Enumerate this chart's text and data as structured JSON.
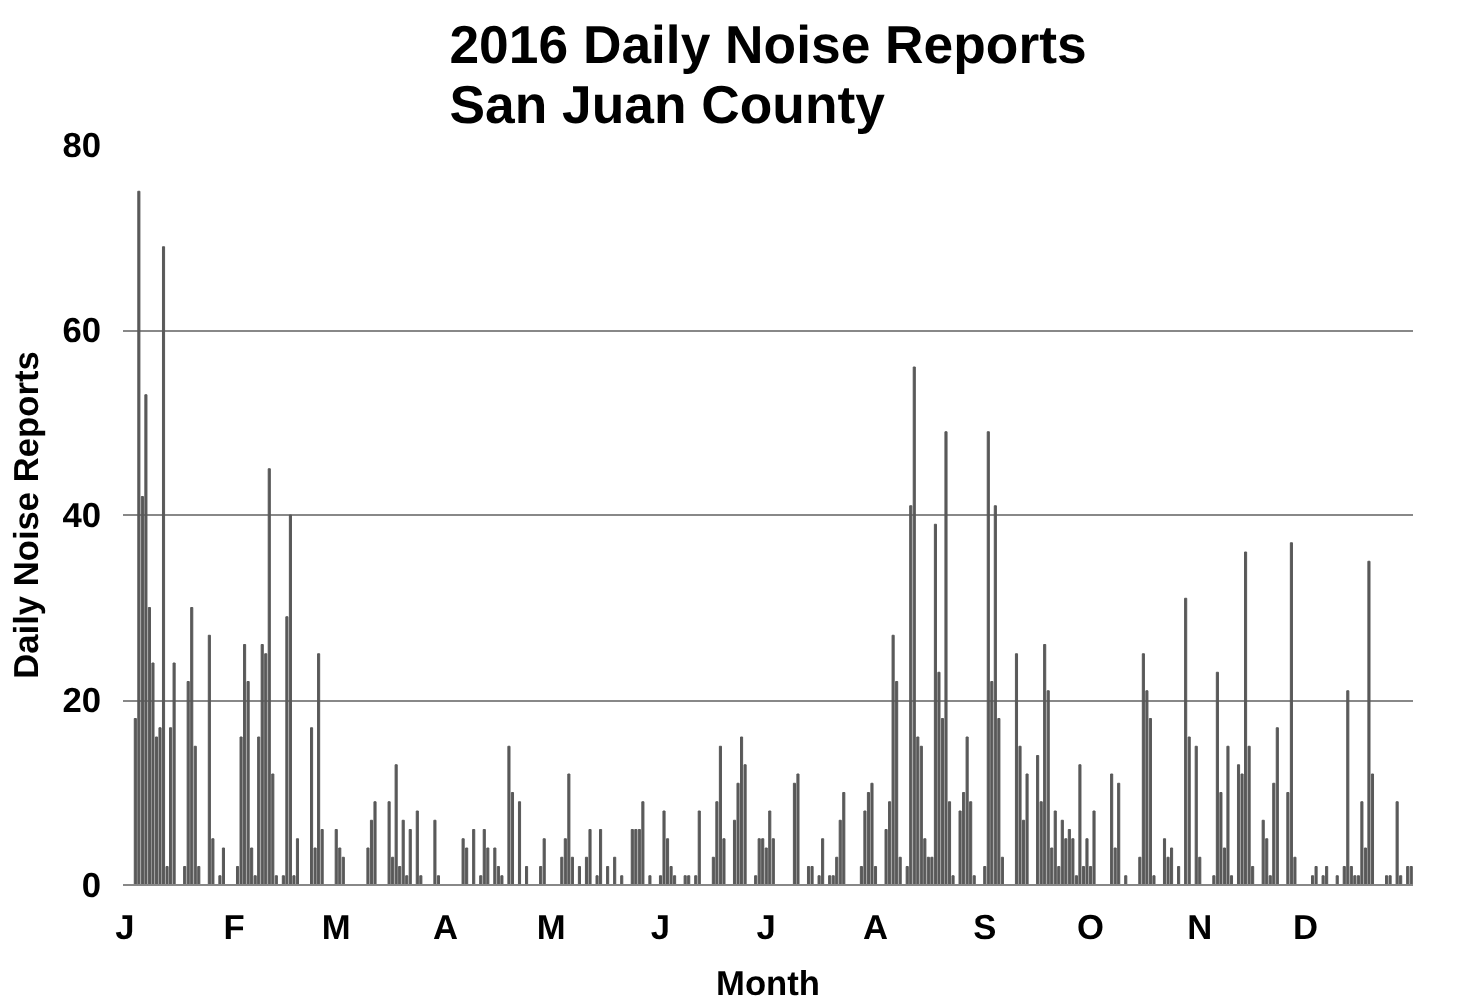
{
  "chart_data": {
    "type": "bar",
    "title": "2016 Daily Noise Reports\nSan Juan County",
    "xlabel": "Month",
    "ylabel": "Daily Noise Reports",
    "categories": [
      "J",
      null,
      null,
      null,
      null,
      null,
      null,
      null,
      null,
      null,
      null,
      null,
      null,
      null,
      null,
      null,
      null,
      null,
      null,
      null,
      null,
      null,
      null,
      null,
      null,
      null,
      null,
      null,
      null,
      null,
      null,
      "F",
      null,
      null,
      null,
      null,
      null,
      null,
      null,
      null,
      null,
      null,
      null,
      null,
      null,
      null,
      null,
      null,
      null,
      null,
      null,
      null,
      null,
      null,
      null,
      null,
      null,
      null,
      null,
      null,
      "M",
      null,
      null,
      null,
      null,
      null,
      null,
      null,
      null,
      null,
      null,
      null,
      null,
      null,
      null,
      null,
      null,
      null,
      null,
      null,
      null,
      null,
      null,
      null,
      null,
      null,
      null,
      null,
      null,
      null,
      null,
      "A",
      null,
      null,
      null,
      null,
      null,
      null,
      null,
      null,
      null,
      null,
      null,
      null,
      null,
      null,
      null,
      null,
      null,
      null,
      null,
      null,
      null,
      null,
      null,
      null,
      null,
      null,
      null,
      null,
      null,
      "M",
      null,
      null,
      null,
      null,
      null,
      null,
      null,
      null,
      null,
      null,
      null,
      null,
      null,
      null,
      null,
      null,
      null,
      null,
      null,
      null,
      null,
      null,
      null,
      null,
      null,
      null,
      null,
      null,
      null,
      null,
      "J",
      null,
      null,
      null,
      null,
      null,
      null,
      null,
      null,
      null,
      null,
      null,
      null,
      null,
      null,
      null,
      null,
      null,
      null,
      null,
      null,
      null,
      null,
      null,
      null,
      null,
      null,
      null,
      null,
      null,
      "J",
      null,
      null,
      null,
      null,
      null,
      null,
      null,
      null,
      null,
      null,
      null,
      null,
      null,
      null,
      null,
      null,
      null,
      null,
      null,
      null,
      null,
      null,
      null,
      null,
      null,
      null,
      null,
      null,
      null,
      null,
      "A",
      null,
      null,
      null,
      null,
      null,
      null,
      null,
      null,
      null,
      null,
      null,
      null,
      null,
      null,
      null,
      null,
      null,
      null,
      null,
      null,
      null,
      null,
      null,
      null,
      null,
      null,
      null,
      null,
      null,
      null,
      "S",
      null,
      null,
      null,
      null,
      null,
      null,
      null,
      null,
      null,
      null,
      null,
      null,
      null,
      null,
      null,
      null,
      null,
      null,
      null,
      null,
      null,
      null,
      null,
      null,
      null,
      null,
      null,
      null,
      null,
      "O",
      null,
      null,
      null,
      null,
      null,
      null,
      null,
      null,
      null,
      null,
      null,
      null,
      null,
      null,
      null,
      null,
      null,
      null,
      null,
      null,
      null,
      null,
      null,
      null,
      null,
      null,
      null,
      null,
      null,
      null,
      "N",
      null,
      null,
      null,
      null,
      null,
      null,
      null,
      null,
      null,
      null,
      null,
      null,
      null,
      null,
      null,
      null,
      null,
      null,
      null,
      null,
      null,
      null,
      null,
      null,
      null,
      null,
      null,
      null,
      null,
      "D",
      null,
      null,
      null,
      null,
      null,
      null,
      null,
      null,
      null,
      null,
      null,
      null,
      null,
      null,
      null,
      null,
      null,
      null,
      null,
      null,
      null,
      null,
      null,
      null,
      null,
      null,
      null,
      null,
      null,
      null
    ],
    "values": [
      0,
      0,
      0,
      18,
      75,
      42,
      53,
      30,
      24,
      16,
      17,
      69,
      2,
      17,
      24,
      0,
      0,
      2,
      22,
      30,
      15,
      2,
      0,
      0,
      27,
      5,
      0,
      1,
      4,
      0,
      0,
      0,
      2,
      16,
      26,
      22,
      4,
      1,
      16,
      26,
      25,
      45,
      12,
      1,
      0,
      1,
      29,
      40,
      1,
      5,
      0,
      0,
      0,
      17,
      4,
      25,
      6,
      0,
      0,
      0,
      6,
      4,
      3,
      0,
      0,
      0,
      0,
      0,
      0,
      4,
      7,
      9,
      0,
      0,
      0,
      9,
      3,
      13,
      2,
      7,
      1,
      6,
      0,
      8,
      1,
      0,
      0,
      0,
      7,
      1,
      0,
      0,
      0,
      0,
      0,
      0,
      5,
      4,
      0,
      6,
      0,
      1,
      6,
      4,
      0,
      4,
      2,
      1,
      0,
      15,
      10,
      0,
      9,
      0,
      2,
      0,
      0,
      0,
      2,
      5,
      0,
      0,
      0,
      0,
      3,
      5,
      12,
      3,
      0,
      2,
      0,
      3,
      6,
      0,
      1,
      6,
      0,
      2,
      0,
      3,
      0,
      1,
      0,
      0,
      6,
      6,
      6,
      9,
      0,
      1,
      0,
      0,
      1,
      8,
      5,
      2,
      1,
      0,
      0,
      1,
      1,
      0,
      1,
      8,
      0,
      0,
      0,
      3,
      9,
      15,
      5,
      0,
      0,
      7,
      11,
      16,
      13,
      0,
      0,
      1,
      5,
      5,
      4,
      8,
      5,
      0,
      0,
      0,
      0,
      0,
      11,
      12,
      0,
      0,
      2,
      2,
      0,
      1,
      5,
      0,
      1,
      1,
      3,
      7,
      10,
      0,
      0,
      0,
      0,
      2,
      8,
      10,
      11,
      2,
      0,
      0,
      6,
      9,
      27,
      22,
      3,
      0,
      2,
      41,
      56,
      16,
      15,
      5,
      3,
      3,
      39,
      23,
      18,
      49,
      9,
      1,
      0,
      8,
      10,
      16,
      9,
      1,
      0,
      0,
      2,
      49,
      22,
      41,
      18,
      3,
      0,
      0,
      0,
      25,
      15,
      7,
      12,
      0,
      0,
      14,
      9,
      26,
      21,
      4,
      8,
      2,
      7,
      5,
      6,
      5,
      1,
      13,
      2,
      5,
      2,
      8,
      0,
      0,
      0,
      0,
      12,
      4,
      11,
      0,
      1,
      0,
      0,
      0,
      3,
      25,
      21,
      18,
      1,
      0,
      0,
      5,
      3,
      4,
      0,
      2,
      0,
      31,
      16,
      0,
      15,
      3,
      0,
      0,
      0,
      1,
      23,
      10,
      4,
      15,
      1,
      0,
      13,
      12,
      36,
      15,
      2,
      0,
      0,
      7,
      5,
      1,
      11,
      17,
      0,
      0,
      10,
      37,
      3,
      0,
      0,
      0,
      0,
      1,
      2,
      0,
      1,
      2,
      0,
      0,
      1,
      0,
      2,
      21,
      2,
      1,
      1,
      9,
      4,
      35,
      12,
      0,
      0,
      0,
      1,
      1,
      0,
      9,
      1,
      0,
      2,
      2
    ],
    "color": "#595959",
    "ylim": [
      0,
      80
    ],
    "yticks": [
      0,
      20,
      40,
      60,
      80
    ],
    "grid": "y"
  }
}
